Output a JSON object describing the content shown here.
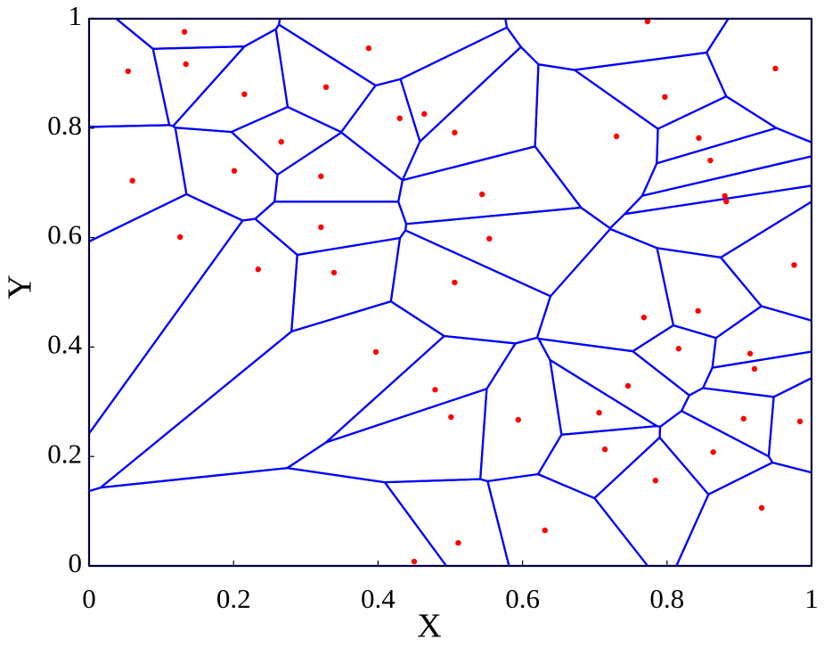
{
  "chart_data": {
    "type": "voronoi",
    "x_label": "X",
    "y_label": "Y",
    "x": [
      0.132,
      0.054,
      0.134,
      0.215,
      0.328,
      0.387,
      0.43,
      0.464,
      0.506,
      0.266,
      0.201,
      0.06,
      0.321,
      0.544,
      0.126,
      0.321,
      0.554,
      0.234,
      0.339,
      0.506,
      0.397,
      0.479,
      0.501,
      0.594,
      0.511,
      0.45,
      0.631,
      0.773,
      0.797,
      0.95,
      0.73,
      0.844,
      0.86,
      0.88,
      0.882,
      0.976,
      0.768,
      0.843,
      0.816,
      0.915,
      0.921,
      0.746,
      0.706,
      0.714,
      0.784,
      0.864,
      0.906,
      0.984,
      0.931
    ],
    "values": [
      0.976,
      0.904,
      0.917,
      0.862,
      0.875,
      0.946,
      0.818,
      0.826,
      0.792,
      0.775,
      0.722,
      0.704,
      0.712,
      0.679,
      0.601,
      0.619,
      0.598,
      0.542,
      0.536,
      0.518,
      0.391,
      0.322,
      0.272,
      0.267,
      0.042,
      0.008,
      0.065,
      0.995,
      0.857,
      0.909,
      0.785,
      0.782,
      0.741,
      0.676,
      0.666,
      0.55,
      0.454,
      0.466,
      0.397,
      0.388,
      0.36,
      0.329,
      0.28,
      0.213,
      0.156,
      0.208,
      0.269,
      0.264,
      0.106
    ],
    "color": "red",
    "edge_color": "blue",
    "xlim": [
      0,
      1
    ],
    "ylim": [
      0,
      1
    ],
    "xticks": [
      0,
      0.2,
      0.4,
      0.6,
      0.8,
      1
    ],
    "yticks": [
      0,
      0.2,
      0.4,
      0.6,
      0.8,
      1
    ]
  }
}
